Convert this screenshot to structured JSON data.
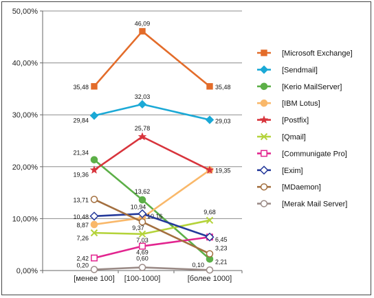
{
  "chart_data": {
    "type": "line",
    "categories": [
      "[менее 100]",
      "[100-1000]",
      "[более 1000]"
    ],
    "ylim": [
      0,
      50
    ],
    "yticks": [
      "0,00%",
      "10,00%",
      "20,00%",
      "30,00%",
      "40,00%",
      "50,00%"
    ],
    "grid": true,
    "legend_position": "right",
    "series": [
      {
        "name": "[Microsoft Exchange]",
        "values": [
          35.48,
          46.09,
          35.48
        ],
        "labels": [
          "35,48",
          "46,09",
          "35,48"
        ],
        "color": "#E36C2A",
        "marker": "square-filled"
      },
      {
        "name": "[Sendmail]",
        "values": [
          29.84,
          32.03,
          29.03
        ],
        "labels": [
          "29,84",
          "32,03",
          "29,03"
        ],
        "color": "#1BA9D6",
        "marker": "diamond-filled"
      },
      {
        "name": "[Kerio MailServer]",
        "values": [
          21.34,
          13.62,
          2.21
        ],
        "labels": [
          "21,34",
          "13,62",
          "2,21"
        ],
        "color": "#5CAF47",
        "marker": "circle-filled"
      },
      {
        "name": "[IBM Lotus]",
        "values": [
          8.87,
          10.16,
          19.35
        ],
        "labels": [
          "8,87",
          "10,16",
          ""
        ],
        "color": "#F9B86A",
        "marker": "circle-filled"
      },
      {
        "name": "[Postfix]",
        "values": [
          19.36,
          25.78,
          19.35
        ],
        "labels": [
          "19,36",
          "25,78",
          "19,35"
        ],
        "color": "#D8343C",
        "marker": "star"
      },
      {
        "name": "[Qmail]",
        "values": [
          7.26,
          7.03,
          9.68
        ],
        "labels": [
          "7,26",
          "7,03",
          "9,68"
        ],
        "color": "#B4D33A",
        "marker": "x"
      },
      {
        "name": "[Communigate Pro]",
        "values": [
          2.42,
          4.69,
          6.45
        ],
        "labels": [
          "2,42",
          "4,69",
          ""
        ],
        "color": "#E2248F",
        "marker": "square-open"
      },
      {
        "name": "[Exim]",
        "values": [
          10.48,
          10.94,
          6.45
        ],
        "labels": [
          "10,48",
          "10,94",
          "6,45"
        ],
        "color": "#24399A",
        "marker": "diamond-open"
      },
      {
        "name": "[MDaemon]",
        "values": [
          13.71,
          9.37,
          3.23
        ],
        "labels": [
          "13,71",
          "9,37",
          "3,23"
        ],
        "color": "#A36F3F",
        "marker": "circle-open"
      },
      {
        "name": "[Merak Mail Server]",
        "values": [
          0.2,
          0.6,
          0.1
        ],
        "labels": [
          "0,20",
          "0,60",
          "0,10"
        ],
        "color": "#9A8A86",
        "marker": "circle-open"
      }
    ]
  }
}
